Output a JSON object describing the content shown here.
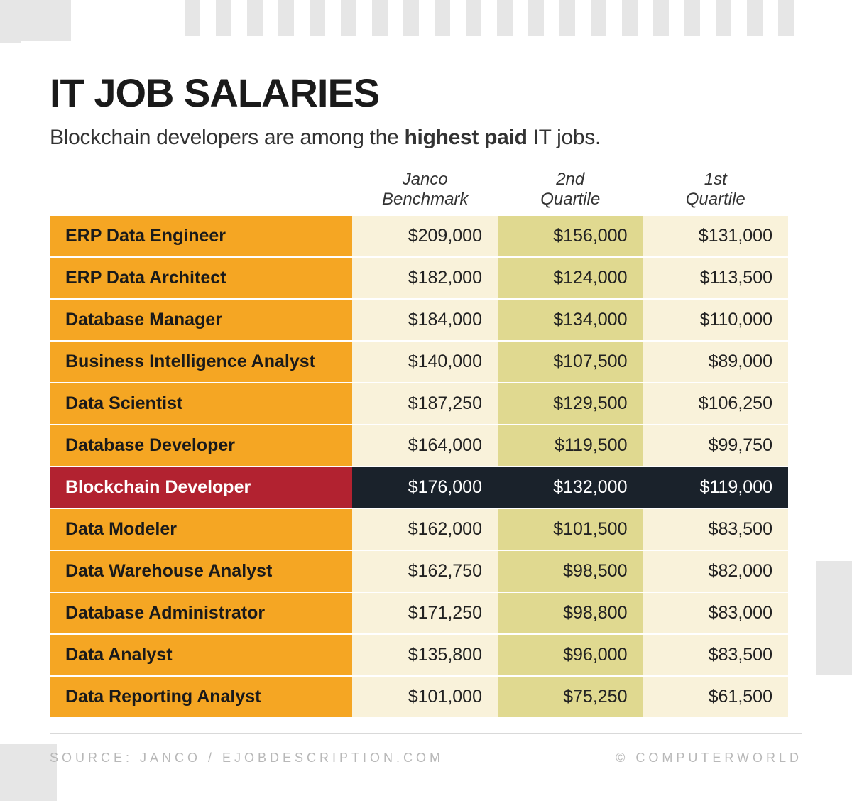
{
  "title": "IT JOB SALARIES",
  "subtitle_pre": "Blockchain developers are among the ",
  "subtitle_bold": "highest paid",
  "subtitle_post": " IT jobs.",
  "table": {
    "type": "table",
    "columns": [
      "",
      "Janco Benchmark",
      "2nd Quartile",
      "1st Quartile"
    ],
    "col1_line1": "Janco",
    "col1_line2": "Benchmark",
    "col2_line1": "2nd",
    "col2_line2": "Quartile",
    "col3_line1": "1st",
    "col3_line2": "Quartile",
    "rows": [
      {
        "job": "ERP Data Engineer",
        "c1": "$209,000",
        "c2": "$156,000",
        "c3": "$131,000",
        "highlight": false
      },
      {
        "job": "ERP Data Architect",
        "c1": "$182,000",
        "c2": "$124,000",
        "c3": "$113,500",
        "highlight": false
      },
      {
        "job": "Database Manager",
        "c1": "$184,000",
        "c2": "$134,000",
        "c3": "$110,000",
        "highlight": false
      },
      {
        "job": "Business Intelligence Analyst",
        "c1": "$140,000",
        "c2": "$107,500",
        "c3": "$89,000",
        "highlight": false
      },
      {
        "job": "Data Scientist",
        "c1": "$187,250",
        "c2": "$129,500",
        "c3": "$106,250",
        "highlight": false
      },
      {
        "job": "Database Developer",
        "c1": "$164,000",
        "c2": "$119,500",
        "c3": "$99,750",
        "highlight": false
      },
      {
        "job": "Blockchain Developer",
        "c1": "$176,000",
        "c2": "$132,000",
        "c3": "$119,000",
        "highlight": true
      },
      {
        "job": "Data Modeler",
        "c1": "$162,000",
        "c2": "$101,500",
        "c3": "$83,500",
        "highlight": false
      },
      {
        "job": "Data Warehouse Analyst",
        "c1": "$162,750",
        "c2": "$98,500",
        "c3": "$82,000",
        "highlight": false
      },
      {
        "job": "Database Administrator",
        "c1": "$171,250",
        "c2": "$98,800",
        "c3": "$83,000",
        "highlight": false
      },
      {
        "job": "Data Analyst",
        "c1": "$135,800",
        "c2": "$96,000",
        "c3": "$83,500",
        "highlight": false
      },
      {
        "job": "Data Reporting Analyst",
        "c1": "$101,000",
        "c2": "$75,250",
        "c3": "$61,500",
        "highlight": false
      }
    ],
    "colors": {
      "job_bg": "#f5a623",
      "value_bg_light": "#f9f2da",
      "value_bg_mid": "#e0d990",
      "highlight_job_bg": "#b22230",
      "highlight_val_bg": "#1a222b",
      "highlight_text": "#ffffff",
      "row_gap_color": "#ffffff",
      "header_font_style": "italic",
      "header_fontsize_pt": 18,
      "body_fontsize_pt": 19,
      "title_fontsize_pt": 42,
      "subtitle_fontsize_pt": 22
    }
  },
  "footer": {
    "source": "SOURCE: JANCO / EJOBDESCRIPTION.COM",
    "credit": "© COMPUTERWORLD"
  },
  "decor": {
    "bar_color": "#e6e6e6",
    "top_bar_count": 20
  }
}
